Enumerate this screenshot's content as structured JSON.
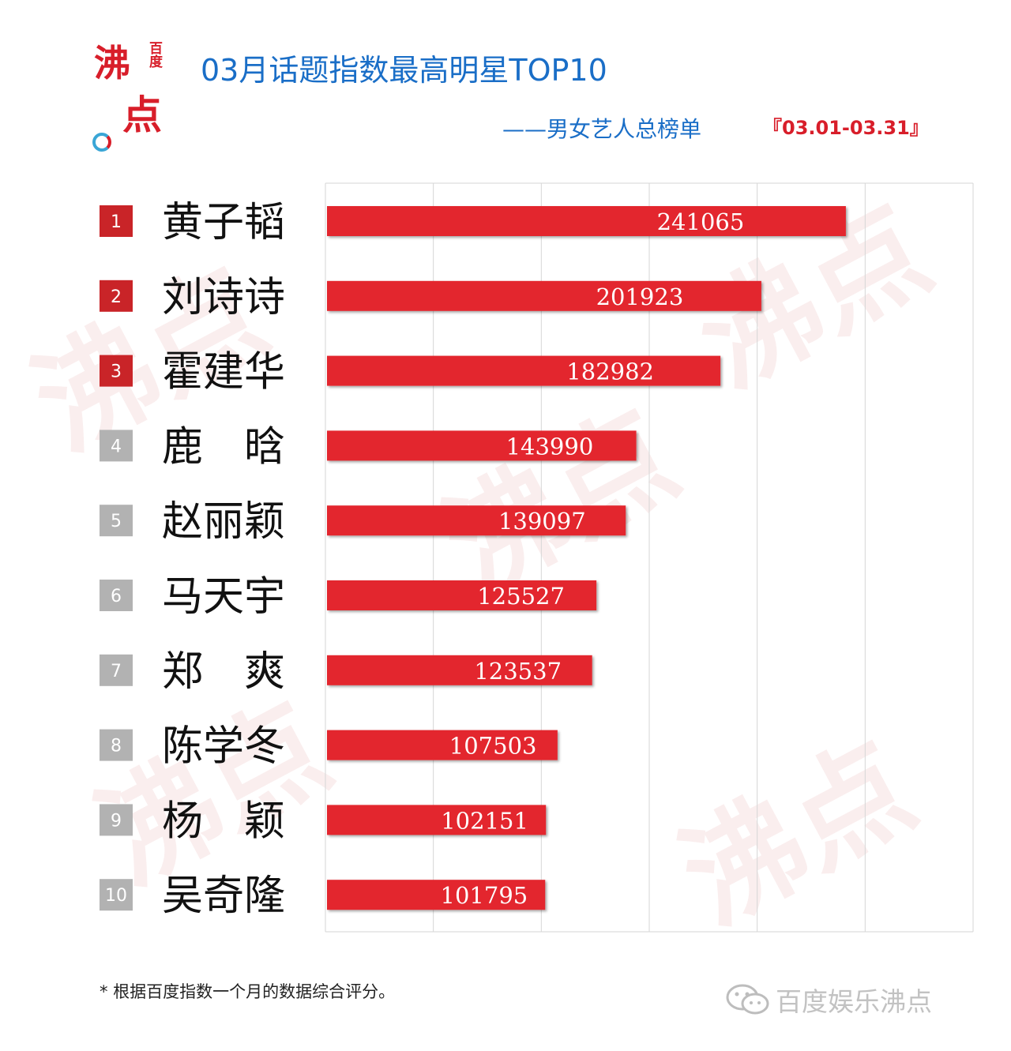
{
  "header": {
    "title": "03月话题指数最高明星TOP10",
    "subtitle": "——男女艺人总榜单",
    "date_range": "『03.01-03.31』"
  },
  "logo": {
    "main_char_1": "沸",
    "main_char_2": "点",
    "small_text": "百度"
  },
  "watermark_text": "沸点",
  "footer": {
    "note": "* 根据百度指数一个月的数据综合评分。",
    "brand": "百度娱乐沸点"
  },
  "colors": {
    "bar": "#e3262d",
    "rank_top3": "#c92428",
    "rank_other": "#b2b2b2",
    "title": "#1a6ec7",
    "accent": "#d81e2a",
    "grid": "#d6d6d6"
  },
  "chart_data": {
    "type": "bar",
    "orientation": "horizontal",
    "title": "03月话题指数最高明星TOP10",
    "xlabel": "",
    "ylabel": "",
    "xlim": [
      0,
      300000
    ],
    "grid": true,
    "ranks": [
      "1",
      "2",
      "3",
      "4",
      "5",
      "6",
      "7",
      "8",
      "9",
      "10"
    ],
    "categories": [
      "黄子韬",
      "刘诗诗",
      "霍建华",
      "鹿　晗",
      "赵丽颖",
      "马天宇",
      "郑　爽",
      "陈学冬",
      "杨　颖",
      "吴奇隆"
    ],
    "values": [
      241065,
      201923,
      182982,
      143990,
      139097,
      125527,
      123537,
      107503,
      102151,
      101795
    ],
    "data_labels": [
      "241065",
      "201923",
      "182982",
      "143990",
      "139097",
      "125527",
      "123537",
      "107503",
      "102151",
      "101795"
    ]
  }
}
